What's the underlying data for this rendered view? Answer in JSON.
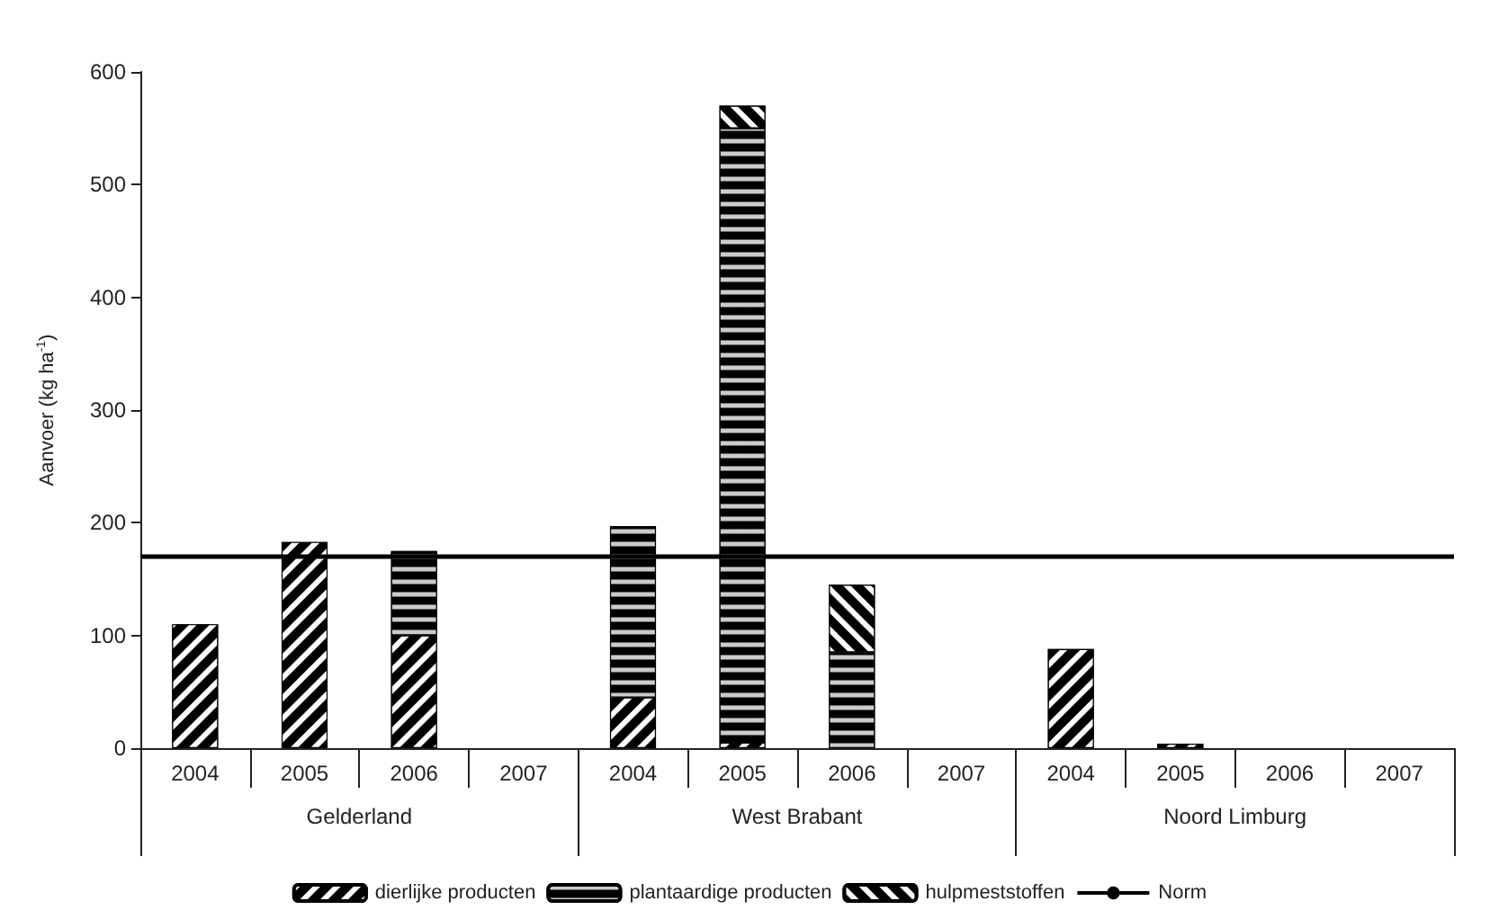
{
  "chart_data": {
    "type": "bar",
    "stacked": true,
    "ylabel": "Aanvoer (kg ha$^{-1}$)",
    "categories": [
      "2004",
      "2005",
      "2006",
      "2007",
      "2004",
      "2005",
      "2006",
      "2007",
      "2004",
      "2005",
      "2006",
      "2007"
    ],
    "annotations": [
      "Gelderland",
      "West Brabant",
      "Noord Limburg"
    ],
    "series": [
      {
        "name": "dierlijke producten",
        "color": "#000000",
        "values": [
          110,
          183,
          100,
          null,
          45,
          5,
          null,
          null,
          88,
          4,
          null,
          null
        ]
      },
      {
        "name": "plantaardige producten",
        "color": "#000000",
        "values": [
          null,
          null,
          75,
          null,
          152,
          545,
          85,
          null,
          null,
          null,
          null,
          null
        ]
      },
      {
        "name": "hulpmeststoffen",
        "color": "#000000",
        "values": [
          null,
          null,
          null,
          null,
          null,
          20,
          60,
          null,
          null,
          null,
          null,
          null
        ]
      }
    ],
    "ref_lines": [
      {
        "axis": "y",
        "value": 170,
        "label": "Norm",
        "color": "#000000"
      }
    ],
    "ylim": [
      0,
      600
    ],
    "yticks": [
      0,
      100,
      200,
      300,
      400,
      500,
      600
    ],
    "grid": false,
    "legend": "bottom"
  }
}
